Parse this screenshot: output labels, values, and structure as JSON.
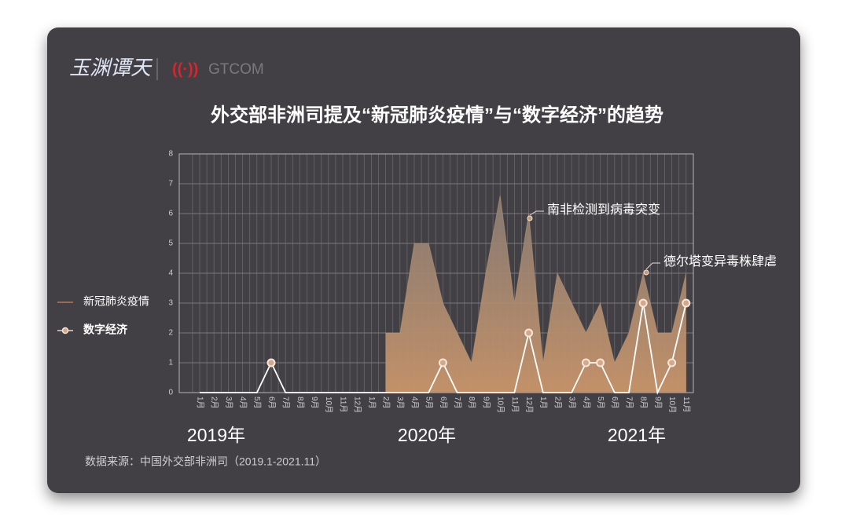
{
  "chart_data": {
    "type": "area-line",
    "logos": [
      "玉渊谭天",
      "GTCOM"
    ],
    "title": "外交部非洲司提及“新冠肺炎疫情”与“数字经济”的趋势",
    "categories": [
      "1月",
      "2月",
      "3月",
      "4月",
      "5月",
      "6月",
      "7月",
      "8月",
      "9月",
      "10月",
      "11月",
      "12月",
      "1月",
      "2月",
      "3月",
      "4月",
      "5月",
      "6月",
      "7月",
      "8月",
      "9月",
      "10月",
      "11月",
      "12月",
      "1月",
      "2月",
      "3月",
      "4月",
      "5月",
      "6月",
      "7月",
      "8月",
      "9月",
      "10月",
      "11月"
    ],
    "year_labels": [
      "2019年",
      "2020年",
      "2021年"
    ],
    "series": [
      {
        "name": "新冠肺炎疫情",
        "color": "#c49a74",
        "values": [
          null,
          null,
          null,
          null,
          null,
          null,
          null,
          null,
          null,
          null,
          null,
          null,
          null,
          2,
          2,
          5,
          5,
          3,
          2,
          1,
          4,
          6.6,
          3,
          6,
          1,
          4,
          3,
          2,
          3,
          1,
          2,
          4,
          2,
          2,
          4
        ]
      },
      {
        "name": "数字经济",
        "color": "#ffffff",
        "values": [
          0,
          0,
          0,
          0,
          0,
          1,
          0,
          0,
          0,
          0,
          0,
          0,
          0,
          0,
          0,
          0,
          0,
          1,
          0,
          0,
          0,
          0,
          0,
          2,
          0,
          0,
          0,
          1,
          1,
          0,
          0,
          3,
          0,
          1,
          3
        ]
      }
    ],
    "annotations": [
      "南非检测到病毒突变",
      "德尔塔变异毒株肆虐"
    ],
    "source": "数据来源：中国外交部非洲司（2019.1-2021.11）",
    "ylim": [
      0,
      8
    ],
    "yticks": [
      0,
      1,
      2,
      3,
      4,
      5,
      6,
      7,
      8
    ],
    "grid": true
  }
}
